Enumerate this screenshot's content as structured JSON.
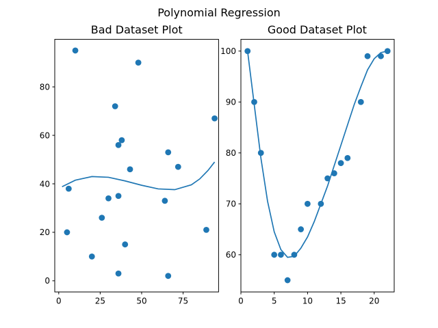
{
  "figure": {
    "title": "Polynomial Regression",
    "color": "#1f77b4"
  },
  "chart_data": [
    {
      "type": "scatter",
      "title": "Bad Dataset Plot",
      "xlabel": "",
      "ylabel": "",
      "xlim": [
        -2.4,
        96.4
      ],
      "ylim": [
        -4.6,
        99.6
      ],
      "xticks": [
        0,
        25,
        50,
        75
      ],
      "yticks": [
        0,
        20,
        40,
        60,
        80
      ],
      "grid": false,
      "series": [
        {
          "kind": "points",
          "x": [
            10,
            48,
            34,
            94,
            38,
            36,
            66,
            72,
            43,
            6,
            30,
            36,
            64,
            26,
            5,
            89,
            40,
            20,
            36,
            66
          ],
          "y": [
            95,
            90,
            72,
            67,
            58,
            56,
            53,
            47,
            46,
            38,
            34,
            35,
            33,
            26,
            20,
            21,
            15,
            10,
            3,
            2
          ]
        },
        {
          "kind": "line",
          "x": [
            2,
            10,
            20,
            30,
            40,
            50,
            60,
            70,
            80,
            85,
            90,
            94
          ],
          "y": [
            38.8,
            41.5,
            43.0,
            42.7,
            41.2,
            39.4,
            37.9,
            37.6,
            39.6,
            42.0,
            45.5,
            49.0
          ]
        }
      ]
    },
    {
      "type": "scatter",
      "title": "Good Dataset Plot",
      "xlabel": "",
      "ylabel": "",
      "xlim": [
        0,
        23
      ],
      "ylim": [
        52.7,
        102.3
      ],
      "xticks": [
        0,
        5,
        10,
        15,
        20
      ],
      "yticks": [
        60,
        70,
        80,
        90,
        100
      ],
      "grid": false,
      "series": [
        {
          "kind": "points",
          "x": [
            1,
            2,
            3,
            5,
            6,
            7,
            8,
            9,
            10,
            12,
            13,
            14,
            15,
            16,
            18,
            19,
            21,
            22
          ],
          "y": [
            100,
            90,
            80,
            60,
            60,
            55,
            60,
            65,
            70,
            70,
            75,
            76,
            78,
            79,
            90,
            99,
            99,
            100
          ]
        },
        {
          "kind": "line",
          "x": [
            1,
            2,
            3,
            4,
            5,
            6,
            7,
            8,
            9,
            10,
            11,
            12,
            13,
            14,
            15,
            16,
            17,
            18,
            19,
            20,
            21,
            22
          ],
          "y": [
            100,
            89.5,
            79.0,
            70.5,
            64.5,
            61.0,
            59.5,
            59.7,
            61.3,
            63.5,
            66.5,
            70.0,
            73.5,
            77.5,
            81.5,
            85.5,
            89.5,
            93.0,
            96.3,
            98.5,
            99.7,
            100
          ]
        }
      ]
    }
  ]
}
